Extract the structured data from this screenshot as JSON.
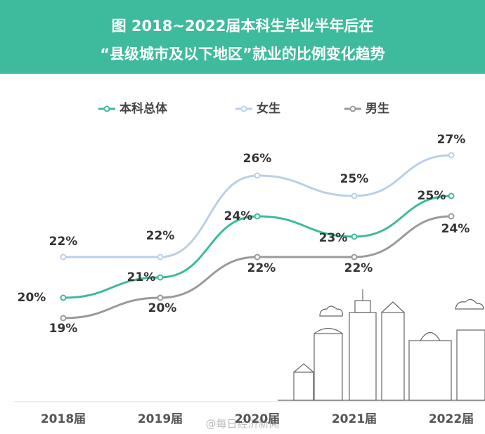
{
  "chart_data": {
    "type": "line",
    "title": [
      "图  2018~2022届本科生毕业半年后在",
      "“县级城市及以下地区”就业的比例变化趋势"
    ],
    "categories": [
      "2018届",
      "2019届",
      "2020届",
      "2021届",
      "2022届"
    ],
    "ylim": [
      14,
      30
    ],
    "legend": "top",
    "series": [
      {
        "name": "本科总体",
        "color": "#3dbb9c",
        "values": [
          20,
          21,
          24,
          23,
          25
        ],
        "value_labels": [
          "20%",
          "21%",
          "24%",
          "23%",
          "25%"
        ]
      },
      {
        "name": "女生",
        "color": "#b9d0e8",
        "values": [
          22,
          22,
          26,
          25,
          27
        ],
        "value_labels": [
          "22%",
          "22%",
          "26%",
          "25%",
          "27%"
        ]
      },
      {
        "name": "男生",
        "color": "#9a9a9a",
        "values": [
          19,
          20,
          22,
          22,
          24
        ],
        "value_labels": [
          "19%",
          "20%",
          "22%",
          "22%",
          "24%"
        ]
      }
    ],
    "watermark": "@每日经济新闻"
  }
}
